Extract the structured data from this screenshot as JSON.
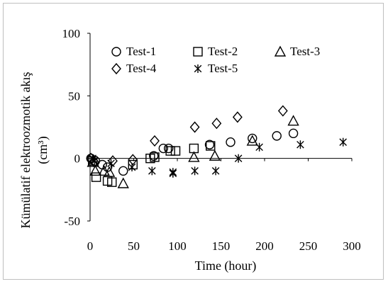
{
  "chart_data": {
    "type": "scatter",
    "xlabel": "Time (hour)",
    "ylabel_line1": "Kümülatif elektroozmotik akış",
    "ylabel_line2": "(cm³)",
    "xlim": [
      0,
      300
    ],
    "ylim": [
      -50,
      100
    ],
    "x_ticks": [
      0,
      50,
      100,
      150,
      200,
      250,
      300
    ],
    "y_ticks": [
      -50,
      0,
      50,
      100
    ],
    "grid": false,
    "legend_position": "top",
    "series": [
      {
        "name": "Test-1",
        "marker": "circle",
        "points": [
          [
            1,
            0
          ],
          [
            6,
            -2
          ],
          [
            14,
            -5
          ],
          [
            20,
            -7
          ],
          [
            38,
            -10
          ],
          [
            73,
            2
          ],
          [
            84,
            8
          ],
          [
            90,
            8
          ],
          [
            137,
            11
          ],
          [
            161,
            13
          ],
          [
            186,
            16
          ],
          [
            214,
            18
          ],
          [
            233,
            20
          ]
        ]
      },
      {
        "name": "Test-2",
        "marker": "square",
        "points": [
          [
            3,
            -2
          ],
          [
            7,
            -15
          ],
          [
            20,
            -18
          ],
          [
            25,
            -19
          ],
          [
            49,
            -5
          ],
          [
            69,
            0
          ],
          [
            74,
            1
          ],
          [
            92,
            6
          ],
          [
            98,
            6
          ],
          [
            119,
            8
          ],
          [
            138,
            10
          ]
        ]
      },
      {
        "name": "Test-3",
        "marker": "triangle",
        "points": [
          [
            3,
            -3
          ],
          [
            6,
            -10
          ],
          [
            16,
            -10
          ],
          [
            22,
            -11
          ],
          [
            38,
            -20
          ],
          [
            119,
            1
          ],
          [
            143,
            2
          ],
          [
            186,
            14
          ],
          [
            233,
            30
          ]
        ]
      },
      {
        "name": "Test-4",
        "marker": "diamond",
        "points": [
          [
            1,
            0
          ],
          [
            5,
            -3
          ],
          [
            26,
            -2
          ],
          [
            49,
            -1
          ],
          [
            74,
            14
          ],
          [
            120,
            25
          ],
          [
            145,
            28
          ],
          [
            169,
            33
          ],
          [
            221,
            38
          ]
        ]
      },
      {
        "name": "Test-5",
        "marker": "asterisk",
        "points": [
          [
            3,
            0
          ],
          [
            5,
            -2
          ],
          [
            24,
            -4
          ],
          [
            48,
            -7
          ],
          [
            71,
            -10
          ],
          [
            95,
            -11
          ],
          [
            95,
            -12
          ],
          [
            120,
            -10
          ],
          [
            144,
            -10
          ],
          [
            170,
            0
          ],
          [
            194,
            9
          ],
          [
            241,
            11
          ],
          [
            290,
            13
          ]
        ]
      }
    ]
  }
}
